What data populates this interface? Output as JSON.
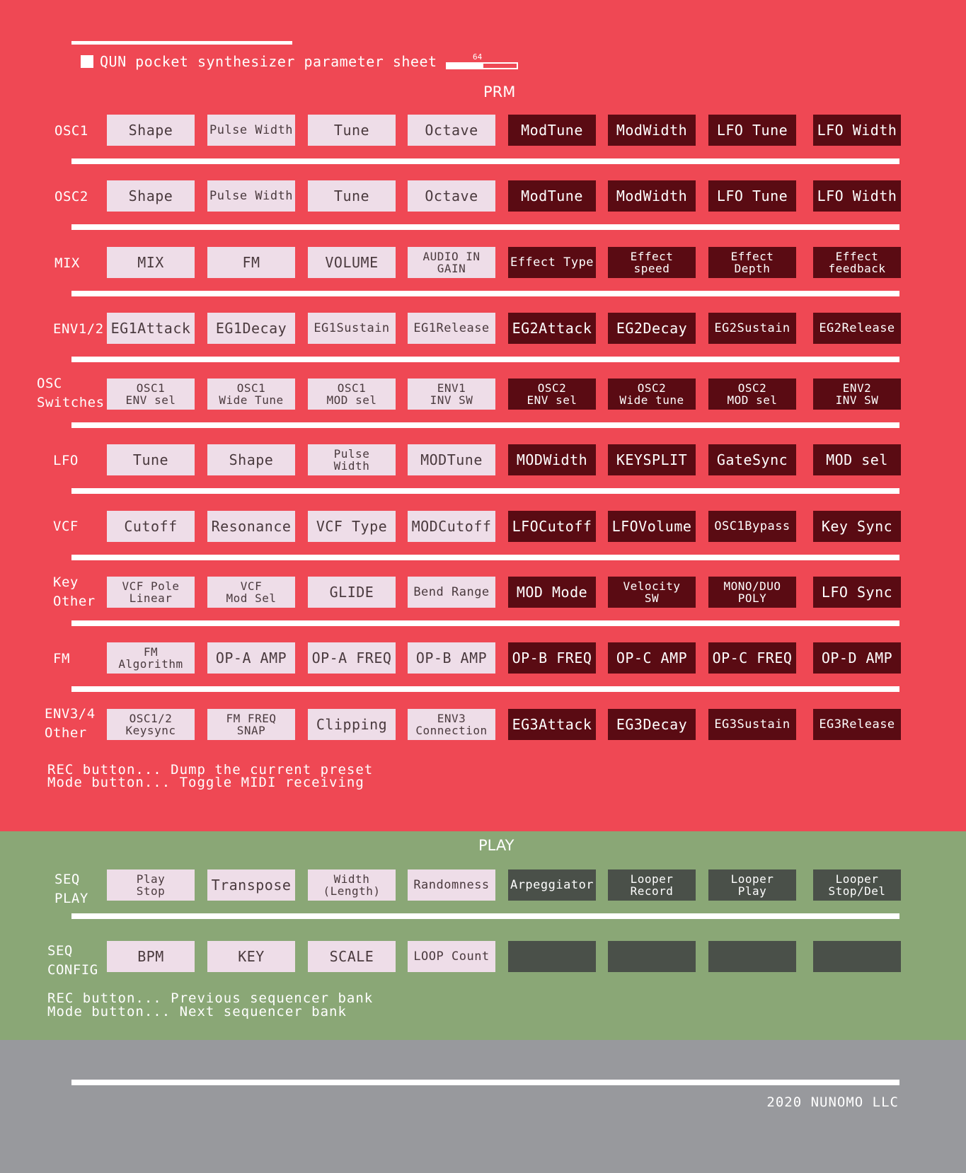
{
  "title": "QUN pocket synthesizer parameter sheet",
  "version": {
    "number": "64",
    "fill_fraction": 0.52
  },
  "prm_header": "PRM",
  "play_header": "PLAY",
  "colors": {
    "prm_bg": "#ef4854",
    "play_bg": "#8aa776",
    "footer_bg": "#98999d",
    "light_cell": "#eedde8",
    "dark_cell": "#5a0b13",
    "gray_cell": "#4a5049"
  },
  "prm_rows": [
    {
      "label": "OSC1",
      "cells": [
        "Shape",
        "Pulse Width",
        "Tune",
        "Octave",
        "ModTune",
        "ModWidth",
        "LFO Tune",
        "LFO Width"
      ]
    },
    {
      "label": "OSC2",
      "cells": [
        "Shape",
        "Pulse Width",
        "Tune",
        "Octave",
        "ModTune",
        "ModWidth",
        "LFO Tune",
        "LFO Width"
      ]
    },
    {
      "label": "MIX",
      "cells": [
        "MIX",
        "FM",
        "VOLUME",
        "AUDIO IN\nGAIN",
        "Effect Type",
        "Effect\nspeed",
        "Effect\nDepth",
        "Effect\nfeedback"
      ]
    },
    {
      "label": "ENV1/2",
      "cells": [
        "EG1Attack",
        "EG1Decay",
        "EG1Sustain",
        "EG1Release",
        "EG2Attack",
        "EG2Decay",
        "EG2Sustain",
        "EG2Release"
      ]
    },
    {
      "label": "OSC\nSwitches",
      "cells": [
        "OSC1\nENV sel",
        "OSC1\nWide Tune",
        "OSC1\nMOD sel",
        "ENV1\nINV SW",
        "OSC2\nENV sel",
        "OSC2\nWide tune",
        "OSC2\nMOD sel",
        "ENV2\nINV SW"
      ]
    },
    {
      "label": "LFO",
      "cells": [
        "Tune",
        "Shape",
        "Pulse\nWidth",
        "MODTune",
        "MODWidth",
        "KEYSPLIT",
        "GateSync",
        "MOD sel"
      ]
    },
    {
      "label": "VCF",
      "cells": [
        "Cutoff",
        "Resonance",
        "VCF Type",
        "MODCutoff",
        "LFOCutoff",
        "LFOVolume",
        "OSC1Bypass",
        "Key Sync"
      ]
    },
    {
      "label": "Key\nOther",
      "cells": [
        "VCF Pole\nLinear",
        "VCF\nMod Sel",
        "GLIDE",
        "Bend Range",
        "MOD Mode",
        "Velocity\nSW",
        "MONO/DUO\nPOLY",
        "LFO Sync"
      ]
    },
    {
      "label": "FM",
      "cells": [
        "FM\nAlgorithm",
        "OP-A AMP",
        "OP-A FREQ",
        "OP-B AMP",
        "OP-B FREQ",
        "OP-C AMP",
        "OP-C FREQ",
        "OP-D AMP"
      ]
    },
    {
      "label": "ENV3/4\nOther",
      "cells": [
        "OSC1/2\nKeysync",
        "FM FREQ\nSNAP",
        "Clipping",
        "ENV3\nConnection",
        "EG3Attack",
        "EG3Decay",
        "EG3Sustain",
        "EG3Release"
      ]
    }
  ],
  "prm_notes": [
    "REC button... Dump the current preset",
    "Mode button... Toggle MIDI receiving"
  ],
  "play_rows": [
    {
      "label": "SEQ\nPLAY",
      "cells": [
        "Play\nStop",
        "Transpose",
        "Width\n(Length)",
        "Randomness",
        "Arpeggiator",
        "Looper\nRecord",
        "Looper\nPlay",
        "Looper\nStop/Del"
      ]
    },
    {
      "label": "SEQ\nCONFIG",
      "cells": [
        "BPM",
        "KEY",
        "SCALE",
        "LOOP Count",
        "",
        "",
        "",
        ""
      ]
    }
  ],
  "play_notes": [
    "REC button... Previous sequencer bank",
    "Mode button... Next sequencer bank"
  ],
  "copyright": "2020 NUNOMO LLC"
}
